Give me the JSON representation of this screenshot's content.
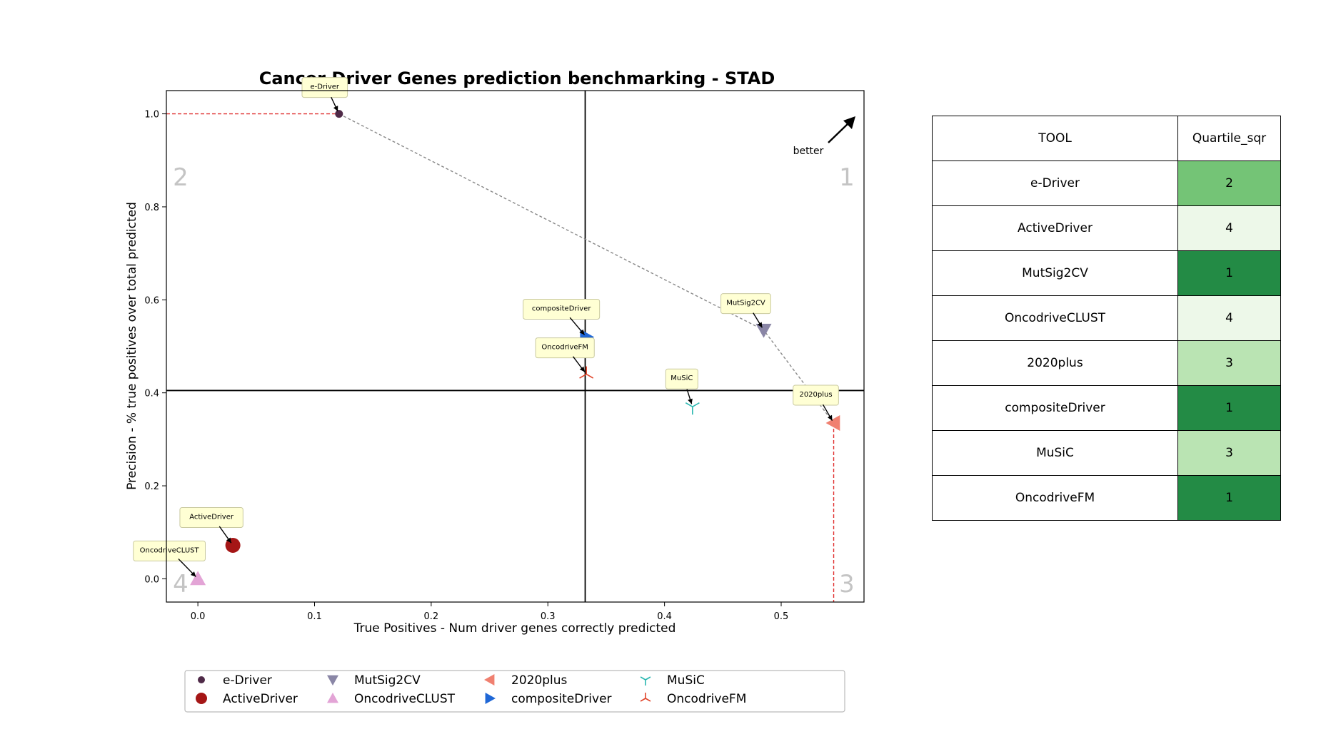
{
  "chart_data": {
    "type": "scatter",
    "title": "Cancer Driver Genes prediction benchmarking - STAD",
    "xlabel": "True Positives - Num driver genes correctly predicted",
    "ylabel": "Precision - % true positives over total predicted",
    "xlim": [
      -0.027,
      0.571
    ],
    "ylim": [
      -0.05,
      1.05
    ],
    "xticks": [
      "0.0",
      "0.1",
      "0.2",
      "0.3",
      "0.4",
      "0.5"
    ],
    "yticks": [
      "0.0",
      "0.2",
      "0.4",
      "0.6",
      "0.8",
      "1.0"
    ],
    "grid": false,
    "legend_position": "bottom",
    "quadrant_lines": {
      "x": 0.332,
      "y": 0.405
    },
    "quadrant_labels": [
      "1",
      "2",
      "3",
      "4"
    ],
    "better_label": "better",
    "series": [
      {
        "name": "e-Driver",
        "x": 0.121,
        "y": 1.0,
        "marker": "circle-small",
        "color": "#4f2a48"
      },
      {
        "name": "ActiveDriver",
        "x": 0.03,
        "y": 0.072,
        "marker": "circle",
        "color": "#a51616"
      },
      {
        "name": "MutSig2CV",
        "x": 0.485,
        "y": 0.535,
        "marker": "triangle-down",
        "color": "#8a86a6"
      },
      {
        "name": "OncodriveCLUST",
        "x": 0.0,
        "y": 0.0,
        "marker": "triangle-up",
        "color": "#e3a4d6"
      },
      {
        "name": "2020plus",
        "x": 0.545,
        "y": 0.335,
        "marker": "triangle-left",
        "color": "#f08070"
      },
      {
        "name": "compositeDriver",
        "x": 0.333,
        "y": 0.52,
        "marker": "triangle-right",
        "color": "#1f67d6"
      },
      {
        "name": "MuSiC",
        "x": 0.424,
        "y": 0.37,
        "marker": "tri-down",
        "color": "#2ab7b0"
      },
      {
        "name": "OncodriveFM",
        "x": 0.333,
        "y": 0.44,
        "marker": "tri-up",
        "color": "#e0442a"
      }
    ],
    "pareto_front": [
      "e-Driver",
      "MutSig2CV",
      "2020plus"
    ]
  },
  "table": {
    "headers": [
      "TOOL",
      "Quartile_sqr"
    ],
    "rows": [
      {
        "tool": "e-Driver",
        "quartile": "2",
        "color": "#74c476"
      },
      {
        "tool": "ActiveDriver",
        "quartile": "4",
        "color": "#edf8e9"
      },
      {
        "tool": "MutSig2CV",
        "quartile": "1",
        "color": "#238b45"
      },
      {
        "tool": "OncodriveCLUST",
        "quartile": "4",
        "color": "#edf8e9"
      },
      {
        "tool": "2020plus",
        "quartile": "3",
        "color": "#bae4b3"
      },
      {
        "tool": "compositeDriver",
        "quartile": "1",
        "color": "#238b45"
      },
      {
        "tool": "MuSiC",
        "quartile": "3",
        "color": "#bae4b3"
      },
      {
        "tool": "OncodriveFM",
        "quartile": "1",
        "color": "#238b45"
      }
    ]
  }
}
